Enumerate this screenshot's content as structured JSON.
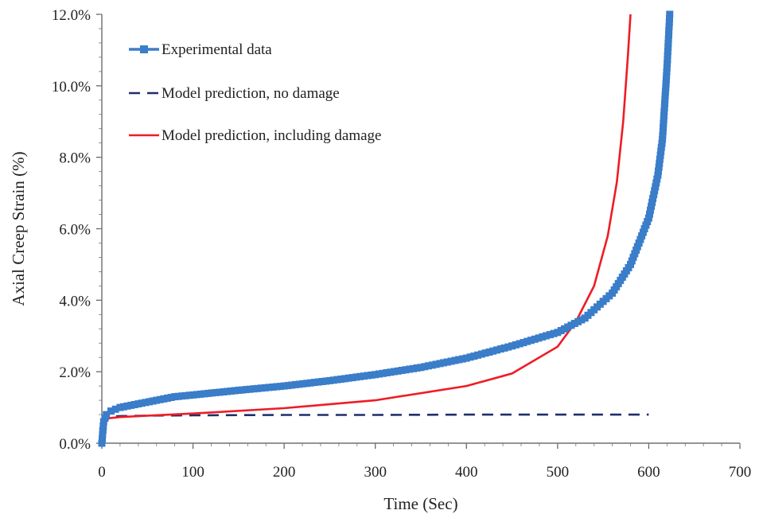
{
  "chart_data": {
    "type": "line",
    "xlabel": "Time (Sec)",
    "ylabel": "Axial Creep Strain (%)",
    "xlim": [
      0,
      700
    ],
    "ylim": [
      0,
      12
    ],
    "x_ticks": [
      0,
      100,
      200,
      300,
      400,
      500,
      600,
      700
    ],
    "x_tick_labels": [
      "0",
      "100",
      "200",
      "300",
      "400",
      "500",
      "600",
      "700"
    ],
    "y_ticks": [
      0,
      2,
      4,
      6,
      8,
      10,
      12
    ],
    "y_tick_labels": [
      "0.0%",
      "2.0%",
      "4.0%",
      "6.0%",
      "8.0%",
      "10.0%",
      "12.0%"
    ],
    "legend_position": "top-left",
    "grid": false,
    "series": [
      {
        "name": "Experimental data",
        "style": "line-square-markers",
        "color": "#3a7dc9",
        "x": [
          0,
          2,
          5,
          10,
          20,
          40,
          60,
          80,
          100,
          150,
          200,
          250,
          300,
          350,
          400,
          450,
          500,
          530,
          560,
          580,
          600,
          610,
          615,
          620,
          623
        ],
        "y": [
          0.0,
          0.6,
          0.8,
          0.9,
          1.0,
          1.1,
          1.2,
          1.3,
          1.35,
          1.48,
          1.6,
          1.75,
          1.92,
          2.12,
          2.38,
          2.72,
          3.1,
          3.5,
          4.2,
          5.0,
          6.3,
          7.5,
          8.5,
          10.5,
          12.0
        ]
      },
      {
        "name": "Model prediction, no damage",
        "style": "dashed",
        "color": "#1f2f6b",
        "x": [
          0,
          1,
          3,
          8,
          20,
          50,
          100,
          200,
          300,
          400,
          500,
          600
        ],
        "y": [
          0.0,
          0.5,
          0.68,
          0.74,
          0.76,
          0.77,
          0.78,
          0.79,
          0.79,
          0.8,
          0.8,
          0.8
        ]
      },
      {
        "name": "Model prediction, including damage",
        "style": "solid",
        "color": "#ee1c25",
        "x": [
          0,
          1,
          3,
          8,
          20,
          50,
          100,
          200,
          300,
          400,
          450,
          500,
          520,
          540,
          555,
          565,
          572,
          577,
          580
        ],
        "y": [
          0.0,
          0.45,
          0.62,
          0.7,
          0.73,
          0.77,
          0.83,
          0.98,
          1.2,
          1.6,
          1.95,
          2.7,
          3.4,
          4.4,
          5.8,
          7.3,
          9.0,
          10.8,
          12.0
        ]
      }
    ]
  }
}
